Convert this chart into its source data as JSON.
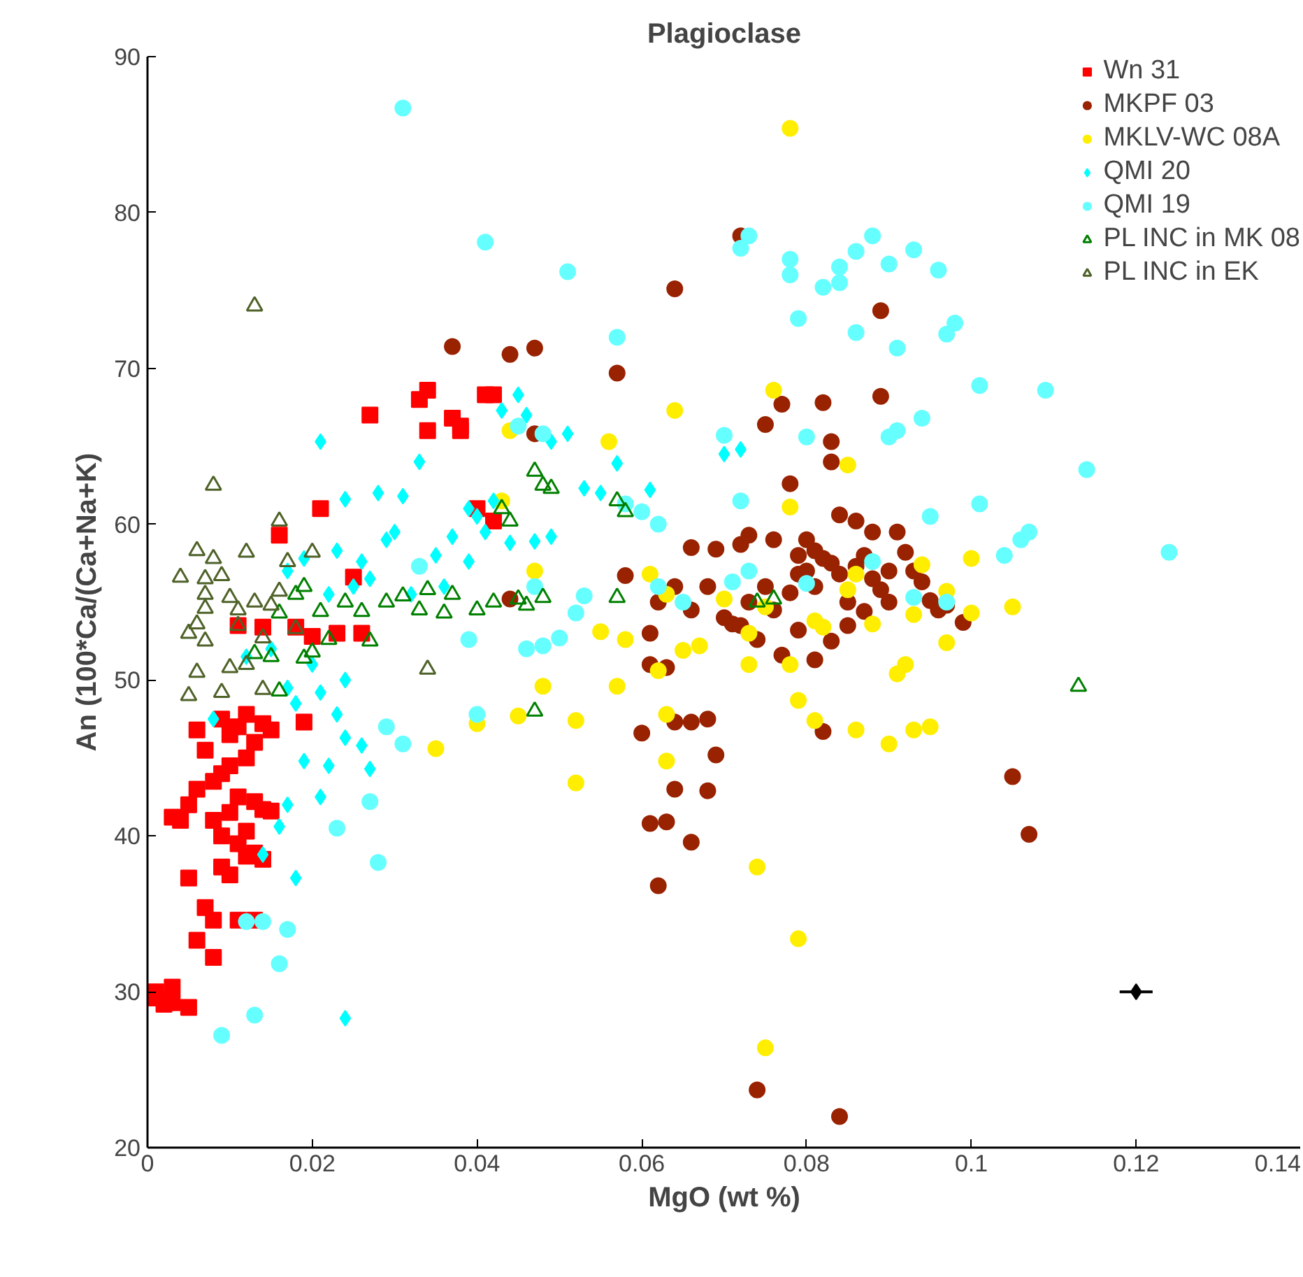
{
  "chart_data": {
    "type": "scatter",
    "title": "Plagioclase",
    "xlabel": "MgO (wt %)",
    "ylabel": "An (100*Ca/(Ca+Na+K)",
    "xlim": [
      0,
      0.14
    ],
    "ylim": [
      20,
      90
    ],
    "xticks": [
      0,
      0.02,
      0.04,
      0.06,
      0.08,
      0.1,
      0.12,
      0.14
    ],
    "yticks": [
      20,
      30,
      40,
      50,
      60,
      70,
      80,
      90
    ],
    "grid": false,
    "legend": "top right",
    "series": [
      {
        "name": "Wn 31",
        "color": "#ff0000",
        "marker": "square",
        "x": [
          0.034,
          0.033,
          0.037,
          0.038,
          0.038,
          0.034,
          0.027,
          0.041,
          0.042,
          0.04,
          0.042,
          0.021,
          0.016,
          0.019,
          0.011,
          0.014,
          0.023,
          0.018,
          0.025,
          0.026,
          0.02,
          0.001,
          0.003,
          0.002,
          0.005,
          0.001,
          0.003,
          0.008,
          0.006,
          0.007,
          0.008,
          0.005,
          0.009,
          0.013,
          0.012,
          0.004,
          0.003,
          0.005,
          0.006,
          0.008,
          0.009,
          0.01,
          0.011,
          0.012,
          0.013,
          0.014,
          0.015,
          0.012,
          0.009,
          0.008,
          0.01,
          0.011,
          0.006,
          0.009,
          0.012,
          0.014,
          0.015,
          0.013,
          0.007,
          0.01,
          0.011,
          0.014,
          0.013,
          0.011,
          0.01
        ],
        "values": [
          68.6,
          68,
          66.8,
          66.3,
          66,
          66,
          67,
          68.3,
          68.3,
          61,
          60.2,
          61,
          59.3,
          47.3,
          53.5,
          53.4,
          53,
          53.4,
          56.6,
          53,
          52.8,
          30,
          30.3,
          29.2,
          29,
          29.6,
          29.3,
          32.2,
          33.3,
          35.4,
          34.6,
          37.3,
          38,
          38.9,
          38.7,
          41,
          41.2,
          42,
          43,
          41,
          40,
          41.5,
          42.5,
          40.3,
          42.2,
          41.7,
          41.6,
          45,
          44,
          43.5,
          46.5,
          47,
          46.8,
          47.5,
          47.8,
          47.2,
          46.8,
          46,
          45.5,
          44.5,
          39.5,
          38.5,
          34.6,
          34.6,
          37.5
        ]
      },
      {
        "name": "MKPF 03",
        "color": "#992200",
        "marker": "circle",
        "x": [
          0.037,
          0.044,
          0.047,
          0.064,
          0.057,
          0.072,
          0.058,
          0.044,
          0.047,
          0.062,
          0.066,
          0.064,
          0.061,
          0.063,
          0.068,
          0.069,
          0.074,
          0.084,
          0.105,
          0.107,
          0.06,
          0.064,
          0.066,
          0.068,
          0.061,
          0.063,
          0.061,
          0.082,
          0.099,
          0.075,
          0.077,
          0.082,
          0.083,
          0.089,
          0.089,
          0.066,
          0.069,
          0.072,
          0.079,
          0.081,
          0.084,
          0.083,
          0.078,
          0.07,
          0.072,
          0.073,
          0.075,
          0.076,
          0.078,
          0.08,
          0.081,
          0.082,
          0.083,
          0.084,
          0.085,
          0.086,
          0.087,
          0.088,
          0.089,
          0.09,
          0.091,
          0.092,
          0.093,
          0.094,
          0.095,
          0.096,
          0.097,
          0.085,
          0.083,
          0.081,
          0.079,
          0.077,
          0.074,
          0.071,
          0.068,
          0.066,
          0.064,
          0.062,
          0.086,
          0.088,
          0.08,
          0.076,
          0.09,
          0.087,
          0.079,
          0.073
        ],
        "values": [
          71.4,
          70.9,
          71.3,
          75.1,
          69.7,
          78.5,
          56.7,
          55.2,
          65.8,
          36.8,
          39.6,
          43,
          40.8,
          40.9,
          42.9,
          45.2,
          23.7,
          22,
          43.8,
          40.1,
          46.6,
          47.3,
          47.3,
          47.5,
          51,
          50.8,
          53,
          46.7,
          53.7,
          66.4,
          67.7,
          67.8,
          65.3,
          68.2,
          73.7,
          58.5,
          58.4,
          58.7,
          58,
          58.3,
          60.6,
          64,
          62.6,
          54,
          53.5,
          55,
          56,
          54.5,
          55.6,
          57,
          56,
          57.8,
          57.5,
          56.8,
          55,
          57.3,
          58,
          56.5,
          55.8,
          57,
          59.5,
          58.2,
          57,
          56.3,
          55.1,
          54.5,
          54.8,
          53.5,
          52.5,
          51.3,
          53.2,
          51.6,
          52.6,
          53.6,
          56,
          54.5,
          56,
          55,
          60.2,
          59.5,
          59,
          59,
          55,
          54.4,
          56.8,
          59.3
        ]
      },
      {
        "name": "MKLV-WC 08A",
        "color": "#ffee00",
        "marker": "circle",
        "x": [
          0.078,
          0.064,
          0.076,
          0.056,
          0.044,
          0.043,
          0.059,
          0.078,
          0.085,
          0.047,
          0.035,
          0.04,
          0.045,
          0.052,
          0.052,
          0.063,
          0.048,
          0.057,
          0.062,
          0.063,
          0.074,
          0.079,
          0.075,
          0.079,
          0.081,
          0.086,
          0.09,
          0.093,
          0.095,
          0.091,
          0.092,
          0.097,
          0.1,
          0.105,
          0.1,
          0.097,
          0.093,
          0.088,
          0.085,
          0.082,
          0.078,
          0.075,
          0.073,
          0.07,
          0.067,
          0.065,
          0.063,
          0.061,
          0.058,
          0.055,
          0.073,
          0.086,
          0.081,
          0.094
        ],
        "values": [
          85.4,
          67.3,
          68.6,
          65.3,
          66,
          61.5,
          null,
          61.1,
          63.8,
          57,
          45.6,
          47.2,
          47.7,
          47.4,
          43.4,
          47.8,
          49.6,
          49.6,
          50.6,
          44.8,
          38,
          33.4,
          26.4,
          48.7,
          47.4,
          46.8,
          45.9,
          46.8,
          47,
          50.4,
          51,
          52.4,
          54.3,
          54.7,
          57.8,
          55.7,
          54.2,
          53.6,
          55.8,
          53.4,
          51,
          54.7,
          53,
          55.2,
          52.2,
          51.9,
          55.5,
          56.8,
          52.6,
          53.1,
          51,
          56.8,
          53.8,
          57.4
        ]
      },
      {
        "name": "QMI 20",
        "color": "#00ffff",
        "marker": "diamond",
        "x": [
          0.021,
          0.033,
          0.024,
          0.028,
          0.031,
          0.03,
          0.026,
          0.023,
          0.019,
          0.017,
          0.022,
          0.025,
          0.027,
          0.035,
          0.037,
          0.039,
          0.04,
          0.041,
          0.042,
          0.043,
          0.045,
          0.046,
          0.049,
          0.051,
          0.053,
          0.055,
          0.057,
          0.061,
          0.047,
          0.044,
          0.049,
          0.039,
          0.036,
          0.032,
          0.012,
          0.015,
          0.017,
          0.018,
          0.02,
          0.021,
          0.023,
          0.024,
          0.022,
          0.024,
          0.026,
          0.027,
          0.019,
          0.017,
          0.021,
          0.016,
          0.018,
          0.024,
          0.014,
          0.07,
          0.072,
          0.008,
          0.029
        ],
        "values": [
          65.3,
          64,
          61.6,
          62,
          61.8,
          59.5,
          57.6,
          58.3,
          57.8,
          57,
          55.5,
          56,
          56.5,
          58,
          59.2,
          61,
          60.5,
          59.5,
          61.5,
          67.3,
          68.3,
          67,
          65.3,
          65.8,
          62.3,
          62,
          63.9,
          62.2,
          58.9,
          58.8,
          59.2,
          57.6,
          56,
          55.5,
          51.5,
          52,
          49.5,
          48.5,
          51,
          49.2,
          47.8,
          50,
          44.5,
          46.3,
          45.8,
          44.3,
          44.8,
          42,
          42.5,
          40.6,
          37.3,
          28.3,
          38.8,
          64.5,
          64.8,
          47.5,
          59
        ]
      },
      {
        "name": "QMI 19",
        "color": "#66ffff",
        "marker": "circle",
        "x": [
          0.031,
          0.041,
          0.051,
          0.057,
          0.072,
          0.073,
          0.078,
          0.078,
          0.082,
          0.084,
          0.084,
          0.086,
          0.088,
          0.09,
          0.093,
          0.094,
          0.096,
          0.097,
          0.098,
          0.086,
          0.079,
          0.091,
          0.101,
          0.109,
          0.114,
          0.124,
          0.107,
          0.106,
          0.104,
          0.101,
          0.095,
          0.091,
          0.09,
          0.08,
          0.07,
          0.058,
          0.072,
          0.048,
          0.045,
          0.047,
          0.046,
          0.05,
          0.053,
          0.052,
          0.039,
          0.04,
          0.048,
          0.033,
          0.012,
          0.014,
          0.016,
          0.013,
          0.009,
          0.017,
          0.023,
          0.027,
          0.028,
          0.031,
          0.029,
          0.062,
          0.065,
          0.071,
          0.073,
          0.088,
          0.093,
          0.097,
          0.08,
          0.062,
          0.06
        ],
        "values": [
          86.7,
          78.1,
          76.2,
          72,
          77.7,
          78.5,
          77,
          76,
          75.2,
          75.5,
          76.5,
          77.5,
          78.5,
          76.7,
          77.6,
          66.8,
          76.3,
          72.2,
          72.9,
          72.3,
          73.2,
          71.3,
          68.9,
          68.6,
          63.5,
          58.2,
          59.5,
          59,
          58,
          61.3,
          60.5,
          66,
          65.6,
          65.6,
          65.7,
          61.3,
          61.5,
          65.8,
          66.3,
          56,
          52,
          52.7,
          55.4,
          54.3,
          52.6,
          47.8,
          52.2,
          57.3,
          34.5,
          34.5,
          31.8,
          28.5,
          27.2,
          34,
          40.5,
          42.2,
          38.3,
          45.9,
          47,
          56,
          55,
          56.3,
          57,
          57.6,
          55.3,
          55,
          56.2,
          60,
          60.8
        ]
      },
      {
        "name": "PL INC in MK 08",
        "color": "#008000",
        "marker": "triangle",
        "x": [
          0.043,
          0.044,
          0.047,
          0.048,
          0.049,
          0.057,
          0.058,
          0.047,
          0.074,
          0.113,
          0.036,
          0.037,
          0.04,
          0.042,
          0.045,
          0.013,
          0.015,
          0.016,
          0.019,
          0.02,
          0.022,
          0.027,
          0.029,
          0.031,
          0.033,
          0.034,
          0.024,
          0.021,
          0.018,
          0.016,
          0.019,
          0.026,
          0.046,
          0.048,
          0.057,
          0.076
        ],
        "values": [
          61,
          60.2,
          63.4,
          62.5,
          62.3,
          61.5,
          60.8,
          48,
          55,
          49.6,
          54.3,
          55.5,
          54.5,
          55,
          55.2,
          51.7,
          51.5,
          49.3,
          51.4,
          51.8,
          52.6,
          52.5,
          55,
          55.4,
          54.5,
          55.8,
          55,
          54.4,
          55.5,
          54.3,
          56,
          54.4,
          54.8,
          55.3,
          55.3,
          55.2
        ]
      },
      {
        "name": "PL INC in EK",
        "color": "#4f6228",
        "marker": "triangle",
        "x": [
          0.013,
          0.008,
          0.004,
          0.006,
          0.008,
          0.007,
          0.009,
          0.012,
          0.01,
          0.011,
          0.007,
          0.007,
          0.006,
          0.005,
          0.006,
          0.007,
          0.009,
          0.01,
          0.012,
          0.014,
          0.016,
          0.015,
          0.016,
          0.02,
          0.017,
          0.013,
          0.034,
          0.005,
          0.014,
          0.018,
          0.011
        ],
        "values": [
          74,
          62.5,
          56.6,
          58.3,
          57.8,
          56.5,
          56.7,
          58.2,
          55.3,
          54.5,
          55.5,
          54.6,
          53.6,
          53,
          50.5,
          52.5,
          49.2,
          50.8,
          51,
          49.4,
          55.7,
          54.8,
          60.2,
          58.2,
          57.6,
          55,
          50.7,
          49,
          52.7,
          53.3,
          53.5
        ]
      },
      {
        "color": "#000000",
        "marker": "diamond",
        "x": [
          0.12
        ],
        "values": [
          30
        ],
        "xerrors": [
          0.002
        ]
      }
    ]
  }
}
